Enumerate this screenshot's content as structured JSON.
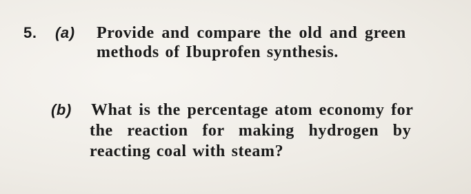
{
  "question": {
    "number": "5.",
    "parts": [
      {
        "label": "(a)",
        "lines": [
          "Provide and compare the old and green",
          "methods of Ibuprofen synthesis."
        ]
      },
      {
        "label": "(b)",
        "lines": [
          "What is the percentage atom economy for",
          "the reaction for making hydrogen by",
          "reacting coal with steam?"
        ]
      }
    ]
  }
}
